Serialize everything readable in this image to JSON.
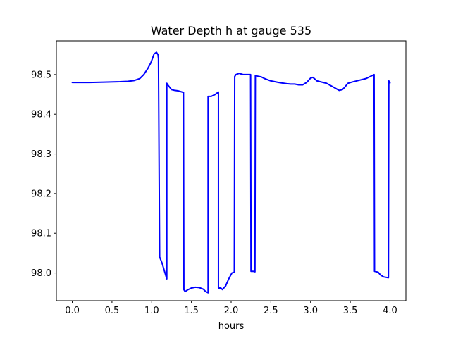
{
  "chart_data": {
    "type": "line",
    "title": "Water Depth h at gauge 535",
    "xlabel": "hours",
    "ylabel": "",
    "xlim": [
      -0.2,
      4.2
    ],
    "ylim": [
      97.93,
      98.585
    ],
    "xticks": [
      0.0,
      0.5,
      1.0,
      1.5,
      2.0,
      2.5,
      3.0,
      3.5,
      4.0
    ],
    "xtick_labels": [
      "0.0",
      "0.5",
      "1.0",
      "1.5",
      "2.0",
      "2.5",
      "3.0",
      "3.5",
      "4.0"
    ],
    "yticks": [
      98.0,
      98.1,
      98.2,
      98.3,
      98.4,
      98.5
    ],
    "ytick_labels": [
      "98.0",
      "98.1",
      "98.2",
      "98.3",
      "98.4",
      "98.5"
    ],
    "grid": false,
    "colors": {
      "line": "#0000ff",
      "axes": "#000000",
      "background": "#ffffff"
    },
    "series": [
      {
        "name": "",
        "x": [
          0.0,
          0.2,
          0.4,
          0.6,
          0.7,
          0.78,
          0.85,
          0.9,
          0.95,
          0.99,
          1.03,
          1.06,
          1.08,
          1.085,
          1.1,
          1.13,
          1.16,
          1.19,
          1.19,
          1.21,
          1.25,
          1.29,
          1.33,
          1.4,
          1.405,
          1.42,
          1.45,
          1.5,
          1.55,
          1.6,
          1.65,
          1.68,
          1.71,
          1.71,
          1.75,
          1.8,
          1.84,
          1.84,
          1.87,
          1.89,
          1.93,
          1.97,
          2.01,
          2.04,
          2.045,
          2.06,
          2.1,
          2.15,
          2.2,
          2.245,
          2.25,
          2.28,
          2.3,
          2.305,
          2.33,
          2.38,
          2.42,
          2.5,
          2.55,
          2.6,
          2.7,
          2.75,
          2.8,
          2.85,
          2.9,
          2.95,
          3.0,
          3.03,
          3.08,
          3.12,
          3.2,
          3.3,
          3.36,
          3.4,
          3.43,
          3.47,
          3.52,
          3.6,
          3.7,
          3.8,
          3.805,
          3.85,
          3.88,
          3.92,
          3.98,
          3.985,
          4.0
        ],
        "values": [
          98.48,
          98.48,
          98.481,
          98.482,
          98.483,
          98.485,
          98.49,
          98.5,
          98.515,
          98.53,
          98.552,
          98.556,
          98.55,
          98.54,
          98.04,
          98.025,
          98.005,
          97.985,
          98.478,
          98.472,
          98.462,
          98.46,
          98.459,
          98.455,
          97.958,
          97.953,
          97.957,
          97.962,
          97.964,
          97.963,
          97.959,
          97.953,
          97.95,
          98.445,
          98.445,
          98.45,
          98.456,
          97.962,
          97.962,
          97.958,
          97.967,
          97.985,
          98.0,
          98.002,
          98.495,
          98.5,
          98.503,
          98.5,
          98.5,
          98.5,
          98.004,
          98.004,
          98.003,
          98.498,
          98.496,
          98.494,
          98.49,
          98.484,
          98.482,
          98.48,
          98.477,
          98.476,
          98.476,
          98.474,
          98.474,
          98.48,
          98.491,
          98.493,
          98.484,
          98.482,
          98.478,
          98.467,
          98.46,
          98.462,
          98.468,
          98.478,
          98.481,
          98.485,
          98.49,
          98.5,
          98.004,
          98.002,
          97.995,
          97.99,
          97.988,
          98.484,
          98.479
        ]
      }
    ]
  }
}
